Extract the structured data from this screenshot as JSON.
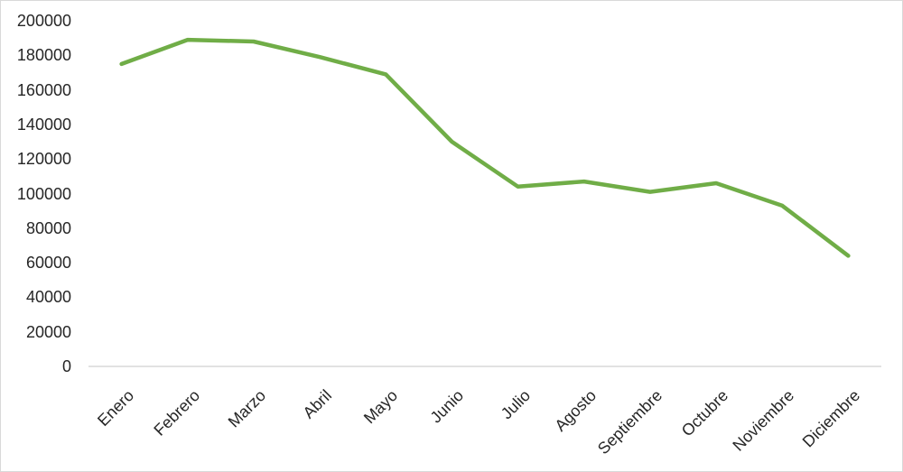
{
  "chart_data": {
    "type": "line",
    "title": "",
    "categories": [
      "Enero",
      "Febrero",
      "Marzo",
      "Abril",
      "Mayo",
      "Junio",
      "Julio",
      "Agosto",
      "Septiembre",
      "Octubre",
      "Noviembre",
      "Diciembre"
    ],
    "values": [
      175000,
      189000,
      188000,
      179000,
      169000,
      130000,
      104000,
      107000,
      101000,
      106000,
      93000,
      64000
    ],
    "xlabel": "",
    "ylabel": "",
    "ylim": [
      0,
      200000
    ],
    "y_tick_step": 20000,
    "y_tick_labels": [
      "0",
      "20000",
      "40000",
      "60000",
      "80000",
      "100000",
      "120000",
      "140000",
      "160000",
      "180000",
      "200000"
    ],
    "x_tick_rotation_deg": 45,
    "grid": false,
    "legend": false,
    "markers": false,
    "colors": {
      "line": "#70AD47",
      "axis": "#D9D9D9",
      "labels": "#262626",
      "border": "#D9D9D9",
      "background": "#FFFFFF"
    }
  }
}
